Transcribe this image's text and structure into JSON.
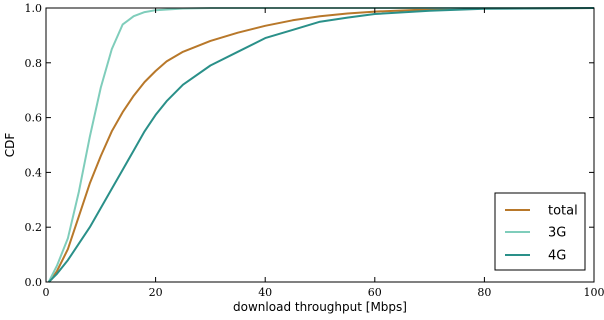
{
  "chart_data": {
    "type": "line",
    "xlabel": "download throughput [Mbps]",
    "ylabel": "CDF",
    "xlim": [
      0,
      100
    ],
    "ylim": [
      0.0,
      1.0
    ],
    "x_ticks": [
      0,
      20,
      40,
      60,
      80,
      100
    ],
    "y_ticks": [
      0.0,
      0.2,
      0.4,
      0.6,
      0.8,
      1.0
    ],
    "x_tick_labels": [
      "0",
      "20",
      "40",
      "60",
      "80",
      "100"
    ],
    "y_tick_labels": [
      "0.0",
      "0.2",
      "0.4",
      "0.6",
      "0.8",
      "1.0"
    ],
    "grid": false,
    "legend_position": "lower-right",
    "series": [
      {
        "name": "total",
        "color": "#b8782a",
        "points": [
          [
            0.5,
            0.0
          ],
          [
            1,
            0.01
          ],
          [
            2,
            0.04
          ],
          [
            4,
            0.12
          ],
          [
            6,
            0.24
          ],
          [
            8,
            0.36
          ],
          [
            10,
            0.46
          ],
          [
            12,
            0.55
          ],
          [
            14,
            0.62
          ],
          [
            16,
            0.68
          ],
          [
            18,
            0.73
          ],
          [
            20,
            0.77
          ],
          [
            22,
            0.805
          ],
          [
            25,
            0.84
          ],
          [
            30,
            0.88
          ],
          [
            35,
            0.91
          ],
          [
            40,
            0.935
          ],
          [
            45,
            0.955
          ],
          [
            50,
            0.97
          ],
          [
            55,
            0.98
          ],
          [
            60,
            0.987
          ],
          [
            70,
            0.995
          ],
          [
            80,
            0.998
          ],
          [
            100,
            1.0
          ]
        ]
      },
      {
        "name": "3G",
        "color": "#7fcdbb",
        "points": [
          [
            0.5,
            0.0
          ],
          [
            1,
            0.02
          ],
          [
            2,
            0.06
          ],
          [
            4,
            0.16
          ],
          [
            6,
            0.33
          ],
          [
            8,
            0.53
          ],
          [
            10,
            0.71
          ],
          [
            12,
            0.85
          ],
          [
            14,
            0.94
          ],
          [
            16,
            0.97
          ],
          [
            18,
            0.985
          ],
          [
            20,
            0.992
          ],
          [
            25,
            0.998
          ],
          [
            30,
            1.0
          ],
          [
            100,
            1.0
          ]
        ]
      },
      {
        "name": "4G",
        "color": "#2a9089",
        "points": [
          [
            0.5,
            0.0
          ],
          [
            1,
            0.01
          ],
          [
            2,
            0.03
          ],
          [
            4,
            0.08
          ],
          [
            6,
            0.14
          ],
          [
            8,
            0.2
          ],
          [
            10,
            0.27
          ],
          [
            12,
            0.34
          ],
          [
            14,
            0.41
          ],
          [
            16,
            0.48
          ],
          [
            18,
            0.55
          ],
          [
            20,
            0.61
          ],
          [
            22,
            0.66
          ],
          [
            25,
            0.72
          ],
          [
            30,
            0.79
          ],
          [
            35,
            0.84
          ],
          [
            40,
            0.89
          ],
          [
            45,
            0.92
          ],
          [
            50,
            0.95
          ],
          [
            55,
            0.965
          ],
          [
            60,
            0.978
          ],
          [
            70,
            0.99
          ],
          [
            80,
            0.997
          ],
          [
            100,
            1.0
          ]
        ]
      }
    ]
  }
}
